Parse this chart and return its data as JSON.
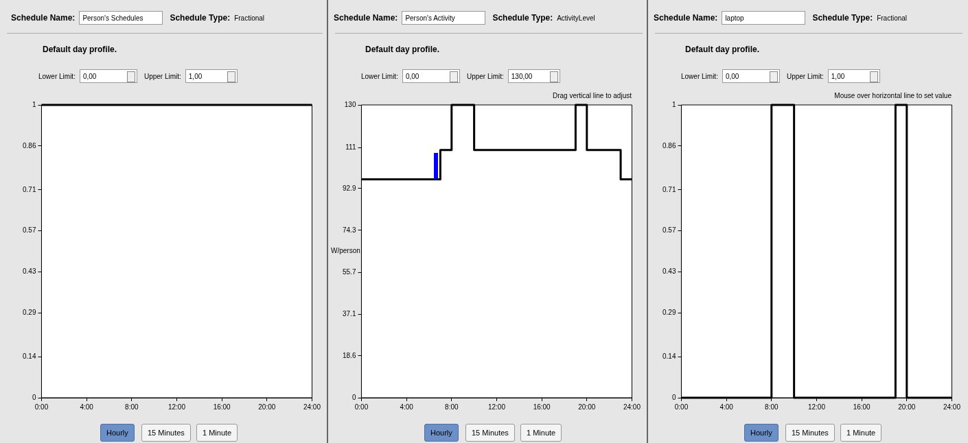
{
  "chart_data": [
    {
      "type": "step",
      "title": "Default day profile.",
      "x": [
        0,
        24
      ],
      "series": [
        {
          "color": "#000000",
          "values": [
            1,
            1
          ]
        }
      ],
      "xlim": [
        0,
        24
      ],
      "xticks": [
        {
          "value": 0,
          "label": "0:00"
        },
        {
          "value": 4,
          "label": "4:00"
        },
        {
          "value": 8,
          "label": "8:00"
        },
        {
          "value": 12,
          "label": "12:00"
        },
        {
          "value": 16,
          "label": "16:00"
        },
        {
          "value": 20,
          "label": "20:00"
        },
        {
          "value": 24,
          "label": "24:00"
        }
      ],
      "ylim": [
        0,
        1
      ],
      "yticks": [
        0,
        0.14,
        0.29,
        0.43,
        0.57,
        0.71,
        0.86,
        1
      ],
      "grid": false,
      "legend": false,
      "marker": "none",
      "line_style": "solid",
      "annotations": [
        "Schedule Name:",
        "Person's Schedules",
        "Schedule Type:",
        "Fractional",
        "Lower Limit:",
        "0,00",
        "Upper Limit:",
        "1,00",
        "Hourly",
        "15 Minutes",
        "1 Minute"
      ]
    },
    {
      "type": "step",
      "title": "Default day profile.",
      "ylabel": "W/person",
      "x": [
        0,
        7,
        8,
        10,
        19,
        20,
        23,
        24
      ],
      "series": [
        {
          "color": "#000000",
          "values": [
            97,
            110,
            130,
            110,
            130,
            110,
            97,
            97
          ]
        }
      ],
      "xlim": [
        0,
        24
      ],
      "xticks": [
        {
          "value": 0,
          "label": "0:00"
        },
        {
          "value": 4,
          "label": "4:00"
        },
        {
          "value": 8,
          "label": "8:00"
        },
        {
          "value": 12,
          "label": "12:00"
        },
        {
          "value": 16,
          "label": "16:00"
        },
        {
          "value": 20,
          "label": "20:00"
        },
        {
          "value": 24,
          "label": "24:00"
        }
      ],
      "ylim": [
        0,
        130
      ],
      "yticks": [
        0,
        18.6,
        37.1,
        55.7,
        74.3,
        92.9,
        111,
        130
      ],
      "grid": false,
      "legend": false,
      "marker": "none",
      "line_style": "solid",
      "annotations": [
        "Schedule Name:",
        "Person's Activity",
        "Schedule Type:",
        "ActivityLevel",
        "Lower Limit:",
        "0,00",
        "Upper Limit:",
        "130,00",
        "Hourly",
        "15 Minutes",
        "1 Minute",
        "Drag vertical line to adjust"
      ]
    },
    {
      "type": "step",
      "title": "Default day profile.",
      "x": [
        0,
        8,
        10,
        19,
        20,
        24
      ],
      "series": [
        {
          "color": "#000000",
          "values": [
            0,
            1,
            0,
            1,
            0,
            0
          ]
        }
      ],
      "xlim": [
        0,
        24
      ],
      "xticks": [
        {
          "value": 0,
          "label": "0:00"
        },
        {
          "value": 4,
          "label": "4:00"
        },
        {
          "value": 8,
          "label": "8:00"
        },
        {
          "value": 12,
          "label": "12:00"
        },
        {
          "value": 16,
          "label": "16:00"
        },
        {
          "value": 20,
          "label": "20:00"
        },
        {
          "value": 24,
          "label": "24:00"
        }
      ],
      "ylim": [
        0,
        1
      ],
      "yticks": [
        0,
        0.14,
        0.29,
        0.43,
        0.57,
        0.71,
        0.86,
        1
      ],
      "grid": false,
      "legend": false,
      "marker": "none",
      "line_style": "solid",
      "annotations": [
        "Schedule Name:",
        "laptop",
        "Schedule Type:",
        "Fractional",
        "Lower Limit:",
        "0,00",
        "Upper Limit:",
        "1,00",
        "Hourly",
        "15 Minutes",
        "1 Minute",
        "Mouse over horizontal line to set value"
      ]
    }
  ]
}
